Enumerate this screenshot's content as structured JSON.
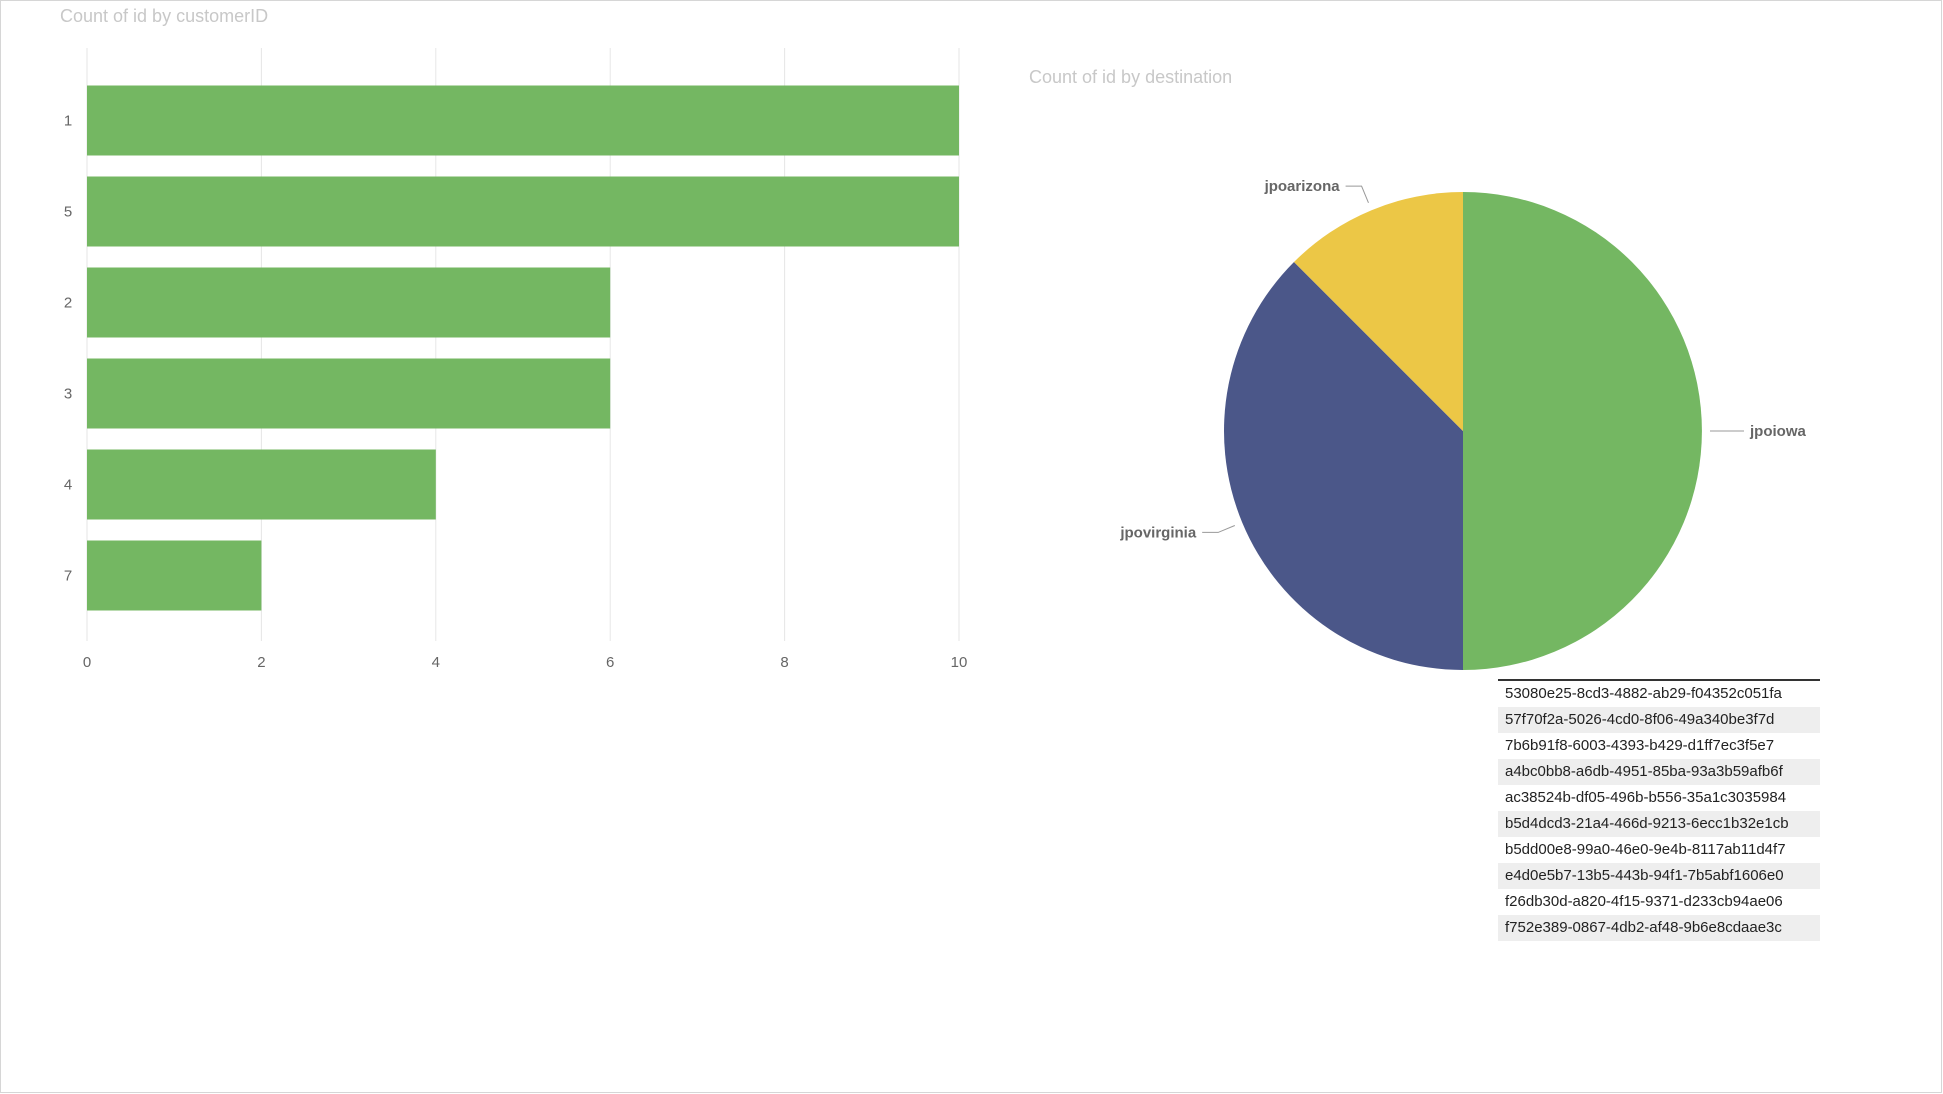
{
  "colors": {
    "bar": "#74b762",
    "pie": [
      "#74b762",
      "#4b5789",
      "#ecc746"
    ],
    "grid": "#e6e6e6",
    "tick_text": "#666666",
    "title_text": "#c8c8c8",
    "label_text": "#666666",
    "leader": "#999999"
  },
  "chart_data": [
    {
      "type": "bar",
      "orientation": "horizontal",
      "title": "Count of id by customerID",
      "categories": [
        "1",
        "5",
        "2",
        "3",
        "4",
        "7"
      ],
      "values": [
        10,
        10,
        6,
        6,
        4,
        2
      ],
      "xlim": [
        0,
        10
      ],
      "x_ticks": [
        0,
        2,
        4,
        6,
        8,
        10
      ],
      "grid": true
    },
    {
      "type": "pie",
      "title": "Count of id by destination",
      "labels": [
        "jpoiowa",
        "jpovirginia",
        "jpoarizona"
      ],
      "values": [
        4,
        3,
        1
      ]
    }
  ],
  "id_table": {
    "rows": [
      "53080e25-8cd3-4882-ab29-f04352c051fa",
      "57f70f2a-5026-4cd0-8f06-49a340be3f7d",
      "7b6b91f8-6003-4393-b429-d1ff7ec3f5e7",
      "a4bc0bb8-a6db-4951-85ba-93a3b59afb6f",
      "ac38524b-df05-496b-b556-35a1c3035984",
      "b5d4dcd3-21a4-466d-9213-6ecc1b32e1cb",
      "b5dd00e8-99a0-46e0-9e4b-8117ab11d4f7",
      "e4d0e5b7-13b5-443b-94f1-7b5abf1606e0",
      "f26db30d-a820-4f15-9371-d233cb94ae06",
      "f752e389-0867-4db2-af48-9b6e8cdaae3c"
    ]
  }
}
